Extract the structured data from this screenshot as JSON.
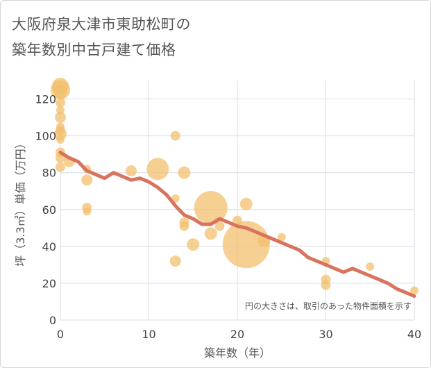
{
  "title": {
    "line1": "大阪府泉大津市東助松町の",
    "line2": "築年数別中古戸建て価格"
  },
  "chart_data": {
    "type": "scatter",
    "xlabel": "築年数（年）",
    "ylabel": "坪（3.3㎡）単価（万円）",
    "xlim": [
      0,
      40
    ],
    "ylim": [
      0,
      130
    ],
    "xticks": [
      0,
      10,
      20,
      30,
      40
    ],
    "yticks": [
      0,
      20,
      40,
      60,
      80,
      100,
      120
    ],
    "grid": true,
    "note": "円の大きさは、取引のあった物件面積を示す",
    "colors": {
      "bubble": "#f2c06e",
      "line": "#d9735e",
      "grid": "#d8dee6"
    },
    "bubbles": [
      {
        "x": 0,
        "y": 127,
        "s": 12
      },
      {
        "x": 0,
        "y": 125,
        "s": 14
      },
      {
        "x": 0,
        "y": 124,
        "s": 10
      },
      {
        "x": 0,
        "y": 118,
        "s": 7
      },
      {
        "x": 0,
        "y": 114,
        "s": 6
      },
      {
        "x": 0,
        "y": 110,
        "s": 8
      },
      {
        "x": 0,
        "y": 105,
        "s": 6
      },
      {
        "x": 0,
        "y": 103,
        "s": 7
      },
      {
        "x": 0,
        "y": 101,
        "s": 9
      },
      {
        "x": 0,
        "y": 98,
        "s": 6
      },
      {
        "x": 0,
        "y": 91,
        "s": 7
      },
      {
        "x": 0,
        "y": 88,
        "s": 7
      },
      {
        "x": 0,
        "y": 83,
        "s": 7
      },
      {
        "x": 1,
        "y": 86,
        "s": 8
      },
      {
        "x": 3,
        "y": 82,
        "s": 6
      },
      {
        "x": 3,
        "y": 76,
        "s": 8
      },
      {
        "x": 3,
        "y": 61,
        "s": 7
      },
      {
        "x": 3,
        "y": 59,
        "s": 6
      },
      {
        "x": 8,
        "y": 81,
        "s": 8
      },
      {
        "x": 11,
        "y": 82,
        "s": 16
      },
      {
        "x": 13,
        "y": 100,
        "s": 7
      },
      {
        "x": 13,
        "y": 66,
        "s": 6
      },
      {
        "x": 13,
        "y": 32,
        "s": 8
      },
      {
        "x": 14,
        "y": 80,
        "s": 9
      },
      {
        "x": 14,
        "y": 53,
        "s": 7
      },
      {
        "x": 14,
        "y": 51,
        "s": 7
      },
      {
        "x": 15,
        "y": 41,
        "s": 9
      },
      {
        "x": 17,
        "y": 61,
        "s": 24
      },
      {
        "x": 17,
        "y": 47,
        "s": 9
      },
      {
        "x": 18,
        "y": 51,
        "s": 7
      },
      {
        "x": 20,
        "y": 54,
        "s": 7
      },
      {
        "x": 21,
        "y": 63,
        "s": 9
      },
      {
        "x": 21,
        "y": 41,
        "s": 34
      },
      {
        "x": 23,
        "y": 43,
        "s": 9
      },
      {
        "x": 25,
        "y": 45,
        "s": 6
      },
      {
        "x": 30,
        "y": 32,
        "s": 6
      },
      {
        "x": 30,
        "y": 22,
        "s": 7
      },
      {
        "x": 30,
        "y": 19,
        "s": 7
      },
      {
        "x": 35,
        "y": 29,
        "s": 6
      },
      {
        "x": 40,
        "y": 16,
        "s": 6
      }
    ],
    "trend": {
      "x": [
        0,
        1,
        2,
        3,
        5,
        6,
        8,
        9,
        10,
        11,
        12,
        13,
        14,
        15,
        16,
        17,
        18,
        19,
        20,
        21,
        22,
        23,
        24,
        25,
        27,
        28,
        30,
        32,
        33,
        34,
        36,
        37,
        38,
        39,
        40
      ],
      "y": [
        91,
        88,
        86,
        81,
        77,
        80,
        76,
        77,
        75,
        72,
        68,
        62,
        57,
        55,
        52,
        52,
        55,
        53,
        51,
        50,
        48,
        46,
        44,
        42,
        38,
        34,
        30,
        26,
        28,
        26,
        22,
        20,
        17,
        15,
        13
      ]
    }
  }
}
